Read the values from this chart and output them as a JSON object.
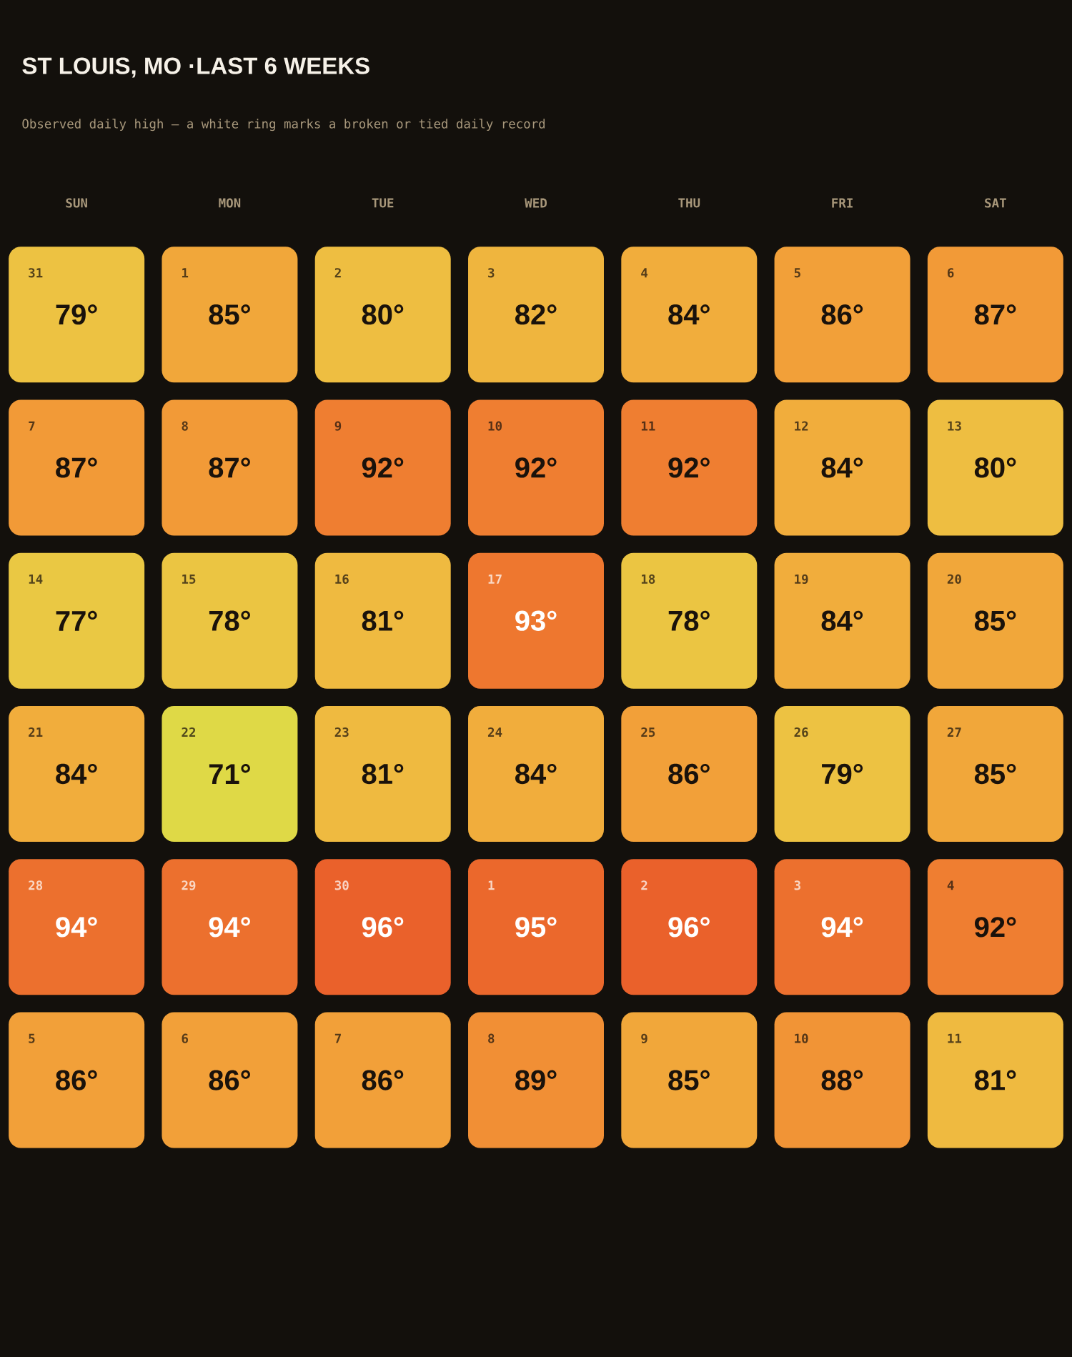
{
  "chart_data": {
    "type": "heatmap",
    "title": "ST LOUIS, MO ·LAST 6 WEEKS",
    "subtitle": "Observed daily high — a white ring marks a broken or tied daily record",
    "categories": [
      "SUN",
      "MON",
      "TUE",
      "WED",
      "THU",
      "FRI",
      "SAT"
    ],
    "y_categories": [
      null,
      null,
      null,
      null,
      null,
      null
    ],
    "cells": [
      [
        79,
        85,
        80,
        82,
        84,
        86,
        87
      ],
      [
        87,
        87,
        92,
        92,
        92,
        84,
        80
      ],
      [
        77,
        78,
        81,
        93,
        78,
        84,
        85
      ],
      [
        84,
        71,
        81,
        84,
        86,
        79,
        85
      ],
      [
        94,
        94,
        96,
        95,
        96,
        94,
        92
      ],
      [
        86,
        86,
        86,
        89,
        85,
        88,
        81
      ]
    ],
    "cell_labels": [
      [
        "79°",
        "85°",
        "80°",
        "82°",
        "84°",
        "86°",
        "87°"
      ],
      [
        "87°",
        "87°",
        "92°",
        "92°",
        "92°",
        "84°",
        "80°"
      ],
      [
        "77°",
        "78°",
        "81°",
        "93°",
        "78°",
        "84°",
        "85°"
      ],
      [
        "84°",
        "71°",
        "81°",
        "84°",
        "86°",
        "79°",
        "85°"
      ],
      [
        "94°",
        "94°",
        "96°",
        "95°",
        "96°",
        "94°",
        "92°"
      ],
      [
        "86°",
        "86°",
        "86°",
        "89°",
        "85°",
        "88°",
        "81°"
      ]
    ],
    "annotations": [
      "31",
      "1",
      "2",
      "3",
      "4",
      "5",
      "6",
      "7",
      "8",
      "9",
      "10",
      "11",
      "12",
      "13",
      "14",
      "15",
      "16",
      "17",
      "18",
      "19",
      "20",
      "21",
      "22",
      "23",
      "24",
      "25",
      "26",
      "27",
      "28",
      "29",
      "30",
      "1",
      "2",
      "3",
      "4",
      "5",
      "6",
      "7",
      "8",
      "9",
      "10",
      "11"
    ]
  }
}
